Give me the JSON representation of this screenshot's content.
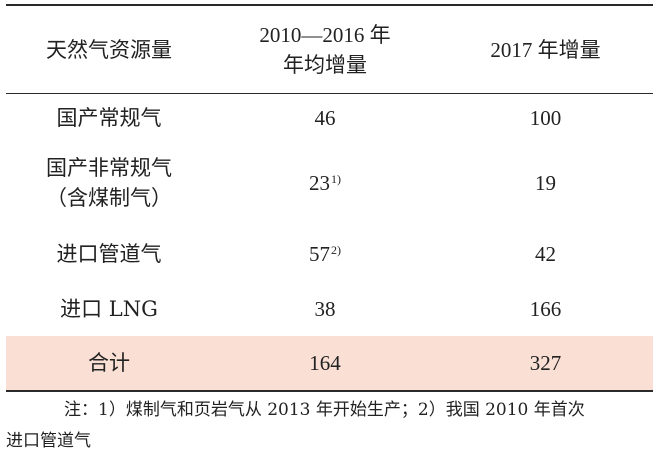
{
  "header": {
    "col1": "天然气资源量",
    "col2_line1": "2010—2016 年",
    "col2_line2": "年均增量",
    "col3": "2017 年增量"
  },
  "rows": [
    {
      "name_line1": "国产常规气",
      "name_line2": "",
      "avg": "46",
      "avg_note": "",
      "inc": "100"
    },
    {
      "name_line1": "国产非常规气",
      "name_line2": "（含煤制气）",
      "avg": "23",
      "avg_note": "1)",
      "inc": "19"
    },
    {
      "name_line1": "进口管道气",
      "name_line2": "",
      "avg": "57",
      "avg_note": "2)",
      "inc": "42"
    },
    {
      "name_line1": "进口 LNG",
      "name_line2": "",
      "avg": "38",
      "avg_note": "",
      "inc": "166"
    }
  ],
  "total": {
    "name": "合计",
    "avg": "164",
    "inc": "327"
  },
  "note": {
    "line1": "注：1）煤制气和页岩气从 2013 年开始生产；2）我国 2010 年首次",
    "line2": "进口管道气"
  },
  "colors": {
    "total_bg": "#f9dfd4",
    "rule": "#2a2a2a"
  }
}
